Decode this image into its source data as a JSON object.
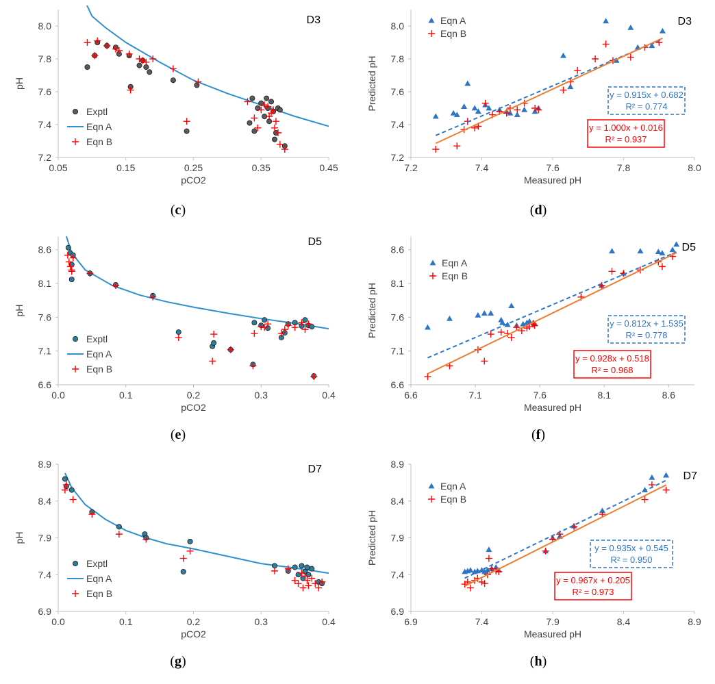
{
  "colors": {
    "exptl_fill": "#5a5a5a",
    "exptl_fill_alt": "#2e7d9a",
    "eqnA": "#2e8fd1",
    "eqnA_marker": "#2e75c5",
    "eqnB": "#ff0000",
    "fitB_line": "#ed7d31",
    "axis": "#bfbfbf",
    "text": "#404040"
  },
  "chart_data": [
    {
      "id": "c",
      "type": "scatter",
      "title": "D3",
      "xlabel": "pCO2",
      "ylabel": "pH",
      "xlim": [
        0.05,
        0.45
      ],
      "ylim": [
        7.2,
        8.1
      ],
      "xticks": [
        0.05,
        0.15,
        0.25,
        0.35,
        0.45
      ],
      "xtick_labels": [
        "0.05",
        "0.15",
        "0.25",
        "0.35",
        "0.45"
      ],
      "yticks": [
        7.2,
        7.4,
        7.6,
        7.8,
        8.0
      ],
      "ytick_labels": [
        "7.2",
        "7.4",
        "7.6",
        "7.8",
        "8.0"
      ],
      "caption_letter": "c",
      "legend": [
        "Exptl",
        "Eqn A",
        "Eqn B"
      ],
      "exptl_style": "gray",
      "curve": {
        "name": "Eqn A",
        "x": [
          0.092,
          0.1,
          0.12,
          0.15,
          0.2,
          0.25,
          0.3,
          0.35,
          0.4,
          0.45
        ],
        "y": [
          8.13,
          8.06,
          7.99,
          7.9,
          7.78,
          7.67,
          7.59,
          7.52,
          7.45,
          7.39
        ]
      },
      "exptl": {
        "x": [
          0.093,
          0.104,
          0.108,
          0.122,
          0.135,
          0.14,
          0.155,
          0.157,
          0.17,
          0.175,
          0.18,
          0.185,
          0.22,
          0.24,
          0.255,
          0.333,
          0.337,
          0.34,
          0.345,
          0.35,
          0.355,
          0.358,
          0.36,
          0.362,
          0.365,
          0.368,
          0.37,
          0.372,
          0.375,
          0.378,
          0.385
        ],
        "y": [
          7.75,
          7.82,
          7.9,
          7.88,
          7.87,
          7.83,
          7.82,
          7.63,
          7.76,
          7.79,
          7.75,
          7.72,
          7.67,
          7.36,
          7.64,
          7.41,
          7.56,
          7.36,
          7.5,
          7.53,
          7.45,
          7.56,
          7.5,
          7.42,
          7.54,
          7.48,
          7.31,
          7.35,
          7.5,
          7.49,
          7.27
        ]
      },
      "eqnB": {
        "x": [
          0.093,
          0.104,
          0.108,
          0.122,
          0.135,
          0.14,
          0.155,
          0.157,
          0.17,
          0.175,
          0.18,
          0.19,
          0.22,
          0.24,
          0.257,
          0.33,
          0.34,
          0.345,
          0.35,
          0.355,
          0.36,
          0.362,
          0.365,
          0.368,
          0.37,
          0.372,
          0.375,
          0.378,
          0.385
        ],
        "y": [
          7.9,
          7.82,
          7.91,
          7.88,
          7.86,
          7.85,
          7.83,
          7.61,
          7.8,
          7.79,
          7.78,
          7.8,
          7.74,
          7.42,
          7.66,
          7.54,
          7.44,
          7.38,
          7.49,
          7.52,
          7.51,
          7.45,
          7.47,
          7.49,
          7.38,
          7.42,
          7.35,
          7.28,
          7.25
        ]
      }
    },
    {
      "id": "d",
      "type": "scatter",
      "title": "D3",
      "xlabel": "Measured pH",
      "ylabel": "Predicted pH",
      "xlim": [
        7.2,
        8.0
      ],
      "ylim": [
        7.2,
        8.1
      ],
      "xticks": [
        7.2,
        7.4,
        7.6,
        7.8,
        8.0
      ],
      "xtick_labels": [
        "7.2",
        "7.4",
        "7.6",
        "7.8",
        "8.0"
      ],
      "yticks": [
        7.2,
        7.4,
        7.6,
        7.8,
        8.0
      ],
      "ytick_labels": [
        "7.2",
        "7.4",
        "7.6",
        "7.8",
        "8.0"
      ],
      "caption_letter": "d",
      "legend": [
        "Eqn A",
        "Eqn B"
      ],
      "eqnA": {
        "x": [
          7.27,
          7.32,
          7.33,
          7.35,
          7.36,
          7.38,
          7.39,
          7.41,
          7.42,
          7.45,
          7.47,
          7.48,
          7.5,
          7.52,
          7.55,
          7.56,
          7.63,
          7.65,
          7.75,
          7.78,
          7.82,
          7.84,
          7.88,
          7.91
        ],
        "y": [
          7.45,
          7.47,
          7.46,
          7.51,
          7.65,
          7.5,
          7.48,
          7.52,
          7.5,
          7.49,
          7.48,
          7.47,
          7.46,
          7.49,
          7.48,
          7.5,
          7.82,
          7.63,
          8.03,
          7.79,
          7.99,
          7.87,
          7.88,
          7.97
        ]
      },
      "eqnB": {
        "x": [
          7.27,
          7.33,
          7.35,
          7.36,
          7.38,
          7.39,
          7.41,
          7.43,
          7.45,
          7.47,
          7.48,
          7.5,
          7.52,
          7.55,
          7.56,
          7.63,
          7.65,
          7.67,
          7.72,
          7.75,
          7.77,
          7.82,
          7.86,
          7.9
        ],
        "y": [
          7.25,
          7.27,
          7.37,
          7.42,
          7.38,
          7.39,
          7.53,
          7.46,
          7.48,
          7.47,
          7.5,
          7.49,
          7.53,
          7.5,
          7.49,
          7.61,
          7.66,
          7.73,
          7.8,
          7.89,
          7.79,
          7.81,
          7.87,
          7.9
        ]
      },
      "fits": [
        {
          "name": "Eqn A",
          "slope": 0.915,
          "intercept": 0.682,
          "x_range": [
            7.27,
            7.91
          ],
          "eq_label": "y = 0.915x + 0.682",
          "r2_label": "R² = 0.774"
        },
        {
          "name": "Eqn B",
          "slope": 1.0,
          "intercept": 0.016,
          "x_range": [
            7.27,
            7.91
          ],
          "eq_label": "y = 1.000x + 0.016",
          "r2_label": "R² = 0.937"
        }
      ]
    },
    {
      "id": "e",
      "type": "scatter",
      "title": "D5",
      "xlabel": "pCO2",
      "ylabel": "pH",
      "xlim": [
        0.0,
        0.4
      ],
      "ylim": [
        6.6,
        8.8
      ],
      "xticks": [
        0.0,
        0.1,
        0.2,
        0.3,
        0.4
      ],
      "xtick_labels": [
        "0.0",
        "0.1",
        "0.2",
        "0.3",
        "0.4"
      ],
      "yticks": [
        6.6,
        7.1,
        7.6,
        8.1,
        8.6
      ],
      "ytick_labels": [
        "6.6",
        "7.1",
        "7.6",
        "8.1",
        "8.6"
      ],
      "caption_letter": "e",
      "legend": [
        "Exptl",
        "Eqn A",
        "Eqn B"
      ],
      "exptl_style": "teal",
      "curve": {
        "name": "Eqn A",
        "x": [
          0.012,
          0.02,
          0.04,
          0.08,
          0.12,
          0.16,
          0.2,
          0.25,
          0.3,
          0.35,
          0.4
        ],
        "y": [
          8.8,
          8.55,
          8.3,
          8.07,
          7.93,
          7.83,
          7.75,
          7.66,
          7.58,
          7.51,
          7.43
        ]
      },
      "exptl": {
        "x": [
          0.015,
          0.018,
          0.02,
          0.02,
          0.022,
          0.047,
          0.085,
          0.14,
          0.178,
          0.228,
          0.23,
          0.255,
          0.288,
          0.29,
          0.3,
          0.305,
          0.31,
          0.33,
          0.335,
          0.34,
          0.35,
          0.36,
          0.365,
          0.37,
          0.375,
          0.378
        ],
        "y": [
          8.63,
          8.55,
          8.38,
          8.16,
          8.52,
          8.25,
          8.08,
          7.92,
          7.38,
          7.17,
          7.22,
          7.12,
          6.9,
          7.52,
          7.48,
          7.56,
          7.44,
          7.3,
          7.37,
          7.5,
          7.52,
          7.47,
          7.56,
          7.48,
          7.46,
          6.73
        ]
      },
      "eqnB": {
        "x": [
          0.014,
          0.016,
          0.018,
          0.02,
          0.02,
          0.022,
          0.047,
          0.085,
          0.14,
          0.178,
          0.228,
          0.23,
          0.255,
          0.288,
          0.29,
          0.3,
          0.305,
          0.31,
          0.33,
          0.335,
          0.34,
          0.35,
          0.36,
          0.365,
          0.37,
          0.378
        ],
        "y": [
          8.52,
          8.42,
          8.35,
          8.28,
          8.3,
          8.48,
          8.25,
          8.07,
          7.9,
          7.3,
          6.95,
          7.35,
          7.12,
          6.88,
          7.36,
          7.46,
          7.45,
          7.5,
          7.36,
          7.42,
          7.48,
          7.45,
          7.52,
          7.42,
          7.5,
          6.72
        ]
      }
    },
    {
      "id": "f",
      "type": "scatter",
      "title": "D5",
      "xlabel": "Measured pH",
      "ylabel": "Predicted pH",
      "xlim": [
        6.6,
        8.8
      ],
      "ylim": [
        6.6,
        8.8
      ],
      "xticks": [
        6.6,
        7.1,
        7.6,
        8.1,
        8.6
      ],
      "xtick_labels": [
        "6.6",
        "7.1",
        "7.6",
        "8.1",
        "8.6"
      ],
      "yticks": [
        6.6,
        7.1,
        7.6,
        8.1,
        8.6
      ],
      "ytick_labels": [
        "6.6",
        "7.1",
        "7.6",
        "8.1",
        "8.6"
      ],
      "caption_letter": "f",
      "legend": [
        "Eqn A",
        "Eqn B"
      ],
      "eqnA": {
        "x": [
          6.73,
          6.9,
          7.12,
          7.17,
          7.22,
          7.3,
          7.31,
          7.35,
          7.38,
          7.42,
          7.47,
          7.5,
          7.52,
          7.55,
          7.56,
          8.08,
          8.16,
          8.25,
          8.38,
          8.52,
          8.55,
          8.63,
          8.66
        ],
        "y": [
          7.45,
          7.58,
          7.63,
          7.66,
          7.66,
          7.56,
          7.52,
          7.49,
          7.77,
          7.48,
          7.5,
          7.52,
          7.54,
          7.52,
          7.5,
          8.07,
          8.58,
          8.25,
          8.58,
          8.57,
          8.55,
          8.6,
          8.68
        ]
      },
      "eqnB": {
        "x": [
          6.73,
          6.9,
          7.12,
          7.17,
          7.22,
          7.3,
          7.35,
          7.38,
          7.42,
          7.46,
          7.5,
          7.52,
          7.55,
          7.56,
          7.92,
          8.08,
          8.16,
          8.25,
          8.38,
          8.52,
          8.55,
          8.63
        ],
        "y": [
          6.72,
          6.88,
          7.12,
          6.95,
          7.35,
          7.38,
          7.36,
          7.3,
          7.45,
          7.4,
          7.44,
          7.46,
          7.5,
          7.48,
          7.9,
          8.07,
          8.28,
          8.25,
          8.3,
          8.42,
          8.35,
          8.5
        ]
      },
      "fits": [
        {
          "name": "Eqn A",
          "slope": 0.812,
          "intercept": 1.535,
          "x_range": [
            6.73,
            8.66
          ],
          "eq_label": "y = 0.812x + 1.535",
          "r2_label": "R² = 0.778"
        },
        {
          "name": "Eqn B",
          "slope": 0.928,
          "intercept": 0.518,
          "x_range": [
            6.73,
            8.66
          ],
          "eq_label": "y = 0.928x + 0.518",
          "r2_label": "R² = 0.968"
        }
      ]
    },
    {
      "id": "g",
      "type": "scatter",
      "title": "D7",
      "xlabel": "pCO2",
      "ylabel": "pH",
      "xlim": [
        0.0,
        0.4
      ],
      "ylim": [
        6.9,
        8.9
      ],
      "xticks": [
        0.0,
        0.1,
        0.2,
        0.3,
        0.4
      ],
      "xtick_labels": [
        "0.0",
        "0.1",
        "0.2",
        "0.3",
        "0.4"
      ],
      "yticks": [
        6.9,
        7.4,
        7.9,
        8.4,
        8.9
      ],
      "ytick_labels": [
        "6.9",
        "7.4",
        "7.9",
        "8.4",
        "8.9"
      ],
      "caption_letter": "g",
      "legend": [
        "Exptl",
        "Eqn A",
        "Eqn B"
      ],
      "exptl_style": "teal",
      "curve": {
        "name": "Eqn A",
        "x": [
          0.01,
          0.02,
          0.04,
          0.07,
          0.1,
          0.13,
          0.16,
          0.2,
          0.25,
          0.3,
          0.35,
          0.4
        ],
        "y": [
          8.78,
          8.58,
          8.35,
          8.15,
          8.0,
          7.9,
          7.82,
          7.75,
          7.65,
          7.55,
          7.49,
          7.42
        ]
      },
      "exptl": {
        "x": [
          0.01,
          0.012,
          0.02,
          0.05,
          0.09,
          0.128,
          0.13,
          0.185,
          0.195,
          0.32,
          0.34,
          0.35,
          0.355,
          0.36,
          0.362,
          0.365,
          0.368,
          0.37,
          0.375,
          0.385,
          0.39
        ],
        "y": [
          8.7,
          8.6,
          8.55,
          8.25,
          8.05,
          7.95,
          7.9,
          7.44,
          7.85,
          7.52,
          7.45,
          7.5,
          7.4,
          7.52,
          7.35,
          7.44,
          7.5,
          7.4,
          7.48,
          7.3,
          7.28
        ]
      },
      "eqnB": {
        "x": [
          0.01,
          0.012,
          0.022,
          0.05,
          0.09,
          0.13,
          0.185,
          0.195,
          0.32,
          0.34,
          0.35,
          0.355,
          0.36,
          0.362,
          0.365,
          0.368,
          0.37,
          0.375,
          0.38,
          0.385,
          0.39
        ],
        "y": [
          8.55,
          8.62,
          8.42,
          8.22,
          7.95,
          7.88,
          7.62,
          7.72,
          7.45,
          7.48,
          7.32,
          7.28,
          7.42,
          7.22,
          7.38,
          7.32,
          7.25,
          7.35,
          7.28,
          7.22,
          7.3
        ]
      }
    },
    {
      "id": "h",
      "type": "scatter",
      "title": "D7",
      "xlabel": "Measured pH",
      "ylabel": "Predicted pH",
      "xlim": [
        6.9,
        8.9
      ],
      "ylim": [
        6.9,
        8.9
      ],
      "xticks": [
        6.9,
        7.4,
        7.9,
        8.4,
        8.9
      ],
      "xtick_labels": [
        "6.9",
        "7.4",
        "7.9",
        "8.4",
        "8.9"
      ],
      "yticks": [
        6.9,
        7.4,
        7.9,
        8.4,
        8.9
      ],
      "ytick_labels": [
        "6.9",
        "7.4",
        "7.9",
        "8.4",
        "8.9"
      ],
      "caption_letter": "h",
      "legend": [
        "Eqn A",
        "Eqn B"
      ],
      "eqnA": {
        "x": [
          7.28,
          7.3,
          7.32,
          7.35,
          7.37,
          7.4,
          7.42,
          7.44,
          7.45,
          7.47,
          7.5,
          7.52,
          7.85,
          7.9,
          7.95,
          8.05,
          8.25,
          8.55,
          8.6,
          8.7
        ],
        "y": [
          7.44,
          7.45,
          7.46,
          7.44,
          7.45,
          7.46,
          7.44,
          7.46,
          7.74,
          7.48,
          7.5,
          7.46,
          7.72,
          7.9,
          7.92,
          8.06,
          8.27,
          8.55,
          8.72,
          8.75
        ]
      },
      "eqnB": {
        "x": [
          7.28,
          7.3,
          7.32,
          7.35,
          7.37,
          7.4,
          7.42,
          7.44,
          7.45,
          7.47,
          7.5,
          7.52,
          7.85,
          7.9,
          7.95,
          8.05,
          8.25,
          8.55,
          8.6,
          8.7
        ],
        "y": [
          7.27,
          7.3,
          7.22,
          7.32,
          7.35,
          7.3,
          7.28,
          7.4,
          7.62,
          7.48,
          7.45,
          7.44,
          7.72,
          7.88,
          7.95,
          8.05,
          8.22,
          8.42,
          8.62,
          8.55
        ]
      },
      "fits": [
        {
          "name": "Eqn A",
          "slope": 0.935,
          "intercept": 0.545,
          "x_range": [
            7.28,
            8.7
          ],
          "eq_label": "y = 0.935x + 0.545",
          "r2_label": "R² = 0.950"
        },
        {
          "name": "Eqn B",
          "slope": 0.967,
          "intercept": 0.205,
          "x_range": [
            7.28,
            8.7
          ],
          "eq_label": "y = 0.967x + 0.205",
          "r2_label": "R² = 0.973"
        }
      ]
    }
  ]
}
